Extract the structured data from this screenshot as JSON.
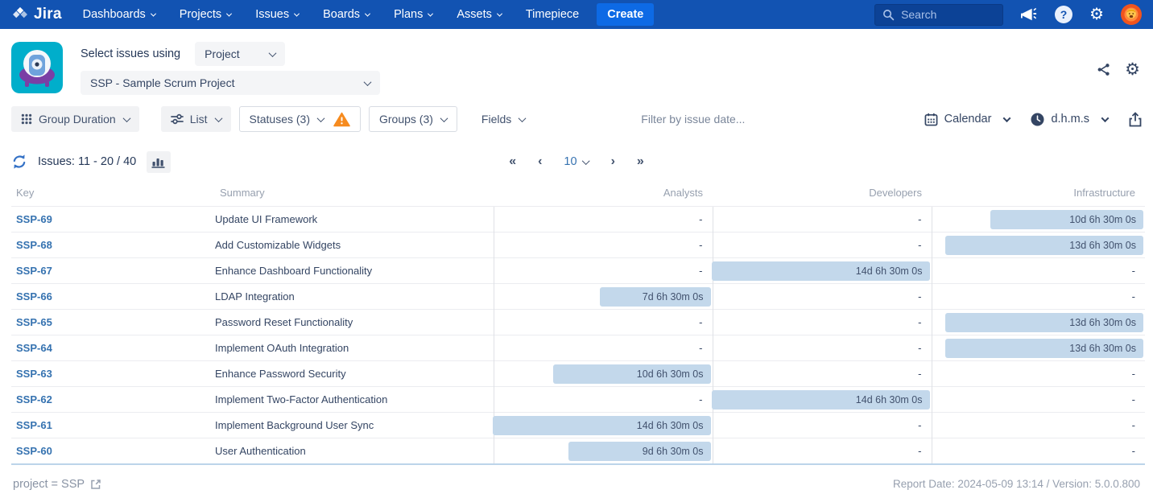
{
  "nav": {
    "logo_text": "Jira",
    "items": [
      {
        "label": "Dashboards",
        "chevron": true
      },
      {
        "label": "Projects",
        "chevron": true
      },
      {
        "label": "Issues",
        "chevron": true
      },
      {
        "label": "Boards",
        "chevron": true
      },
      {
        "label": "Plans",
        "chevron": true
      },
      {
        "label": "Assets",
        "chevron": true
      },
      {
        "label": "Timepiece",
        "chevron": false
      }
    ],
    "create_label": "Create",
    "search_placeholder": "Search"
  },
  "header": {
    "select_label": "Select issues using",
    "mode_value": "Project",
    "project_value": "SSP - Sample Scrum Project"
  },
  "toolbar": {
    "group_duration_label": "Group Duration",
    "list_label": "List",
    "statuses_label": "Statuses (3)",
    "groups_label": "Groups (3)",
    "fields_label": "Fields",
    "filter_placeholder": "Filter by issue date...",
    "calendar_label": "Calendar",
    "time_format_label": "d.h.m.s"
  },
  "results": {
    "issues_count_label": "Issues: 11 - 20 / 40",
    "page_size": "10"
  },
  "table": {
    "columns": [
      "Key",
      "Summary",
      "Analysts",
      "Developers",
      "Infrastructure"
    ],
    "max_days": 14.271,
    "rows": [
      {
        "key": "SSP-69",
        "summary": "Update UI Framework",
        "analysts": {
          "text": "-"
        },
        "developers": {
          "text": "-"
        },
        "infrastructure": {
          "text": "10d 6h 30m 0s",
          "days": 10.271
        }
      },
      {
        "key": "SSP-68",
        "summary": "Add Customizable Widgets",
        "analysts": {
          "text": "-"
        },
        "developers": {
          "text": "-"
        },
        "infrastructure": {
          "text": "13d 6h 30m 0s",
          "days": 13.271
        }
      },
      {
        "key": "SSP-67",
        "summary": "Enhance Dashboard Functionality",
        "analysts": {
          "text": "-"
        },
        "developers": {
          "text": "14d 6h 30m 0s",
          "days": 14.271
        },
        "infrastructure": {
          "text": "-"
        }
      },
      {
        "key": "SSP-66",
        "summary": "LDAP Integration",
        "analysts": {
          "text": "7d 6h 30m 0s",
          "days": 7.271
        },
        "developers": {
          "text": "-"
        },
        "infrastructure": {
          "text": "-"
        }
      },
      {
        "key": "SSP-65",
        "summary": "Password Reset Functionality",
        "analysts": {
          "text": "-"
        },
        "developers": {
          "text": "-"
        },
        "infrastructure": {
          "text": "13d 6h 30m 0s",
          "days": 13.271
        }
      },
      {
        "key": "SSP-64",
        "summary": "Implement OAuth Integration",
        "analysts": {
          "text": "-"
        },
        "developers": {
          "text": "-"
        },
        "infrastructure": {
          "text": "13d 6h 30m 0s",
          "days": 13.271
        }
      },
      {
        "key": "SSP-63",
        "summary": "Enhance Password Security",
        "analysts": {
          "text": "10d 6h 30m 0s",
          "days": 10.271
        },
        "developers": {
          "text": "-"
        },
        "infrastructure": {
          "text": "-"
        }
      },
      {
        "key": "SSP-62",
        "summary": "Implement Two-Factor Authentication",
        "analysts": {
          "text": "-"
        },
        "developers": {
          "text": "14d 6h 30m 0s",
          "days": 14.271
        },
        "infrastructure": {
          "text": "-"
        }
      },
      {
        "key": "SSP-61",
        "summary": "Implement Background User Sync",
        "analysts": {
          "text": "14d 6h 30m 0s",
          "days": 14.271
        },
        "developers": {
          "text": "-"
        },
        "infrastructure": {
          "text": "-"
        }
      },
      {
        "key": "SSP-60",
        "summary": "User Authentication",
        "analysts": {
          "text": "9d 6h 30m 0s",
          "days": 9.271
        },
        "developers": {
          "text": "-"
        },
        "infrastructure": {
          "text": "-"
        }
      }
    ]
  },
  "footer": {
    "query_label": "project = SSP",
    "report_info": "Report Date: 2024-05-09 13:14 / Version: 5.0.0.800"
  },
  "colors": {
    "nav_background": "#1253B2",
    "create_button": "#0D6AE5",
    "bar_fill": "#C3D8EB",
    "key_link": "#3572B0",
    "warning_triangle": "#F68B1F",
    "app_icon_teal": "#00AECB"
  }
}
